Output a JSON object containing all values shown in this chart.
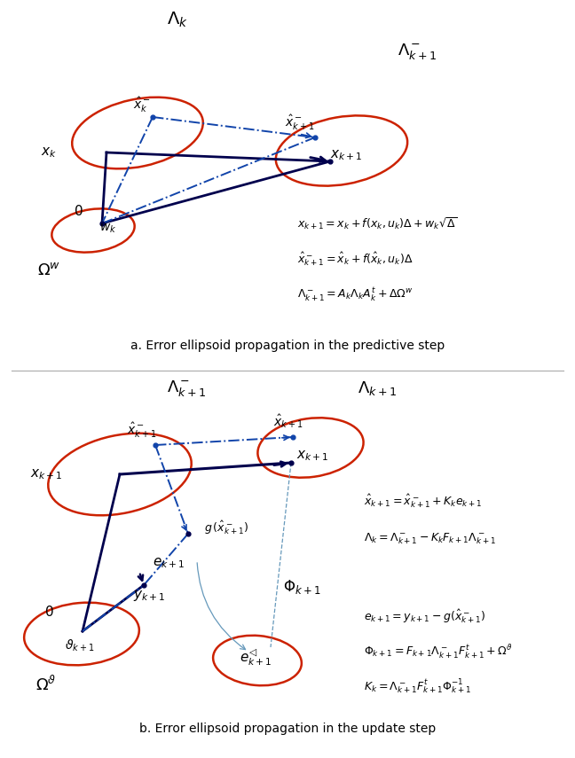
{
  "fig_width": 6.48,
  "fig_height": 8.55,
  "bg_color": "#ffffff",
  "ellipse_color": "#cc2200",
  "ellipse_lw": 1.8,
  "arrow_color": "#00004d",
  "dashdot_color": "#1144aa",
  "caption_a": "a. Error ellipsoid propagation in the predictive step",
  "caption_b": "b. Error ellipsoid propagation in the update step"
}
